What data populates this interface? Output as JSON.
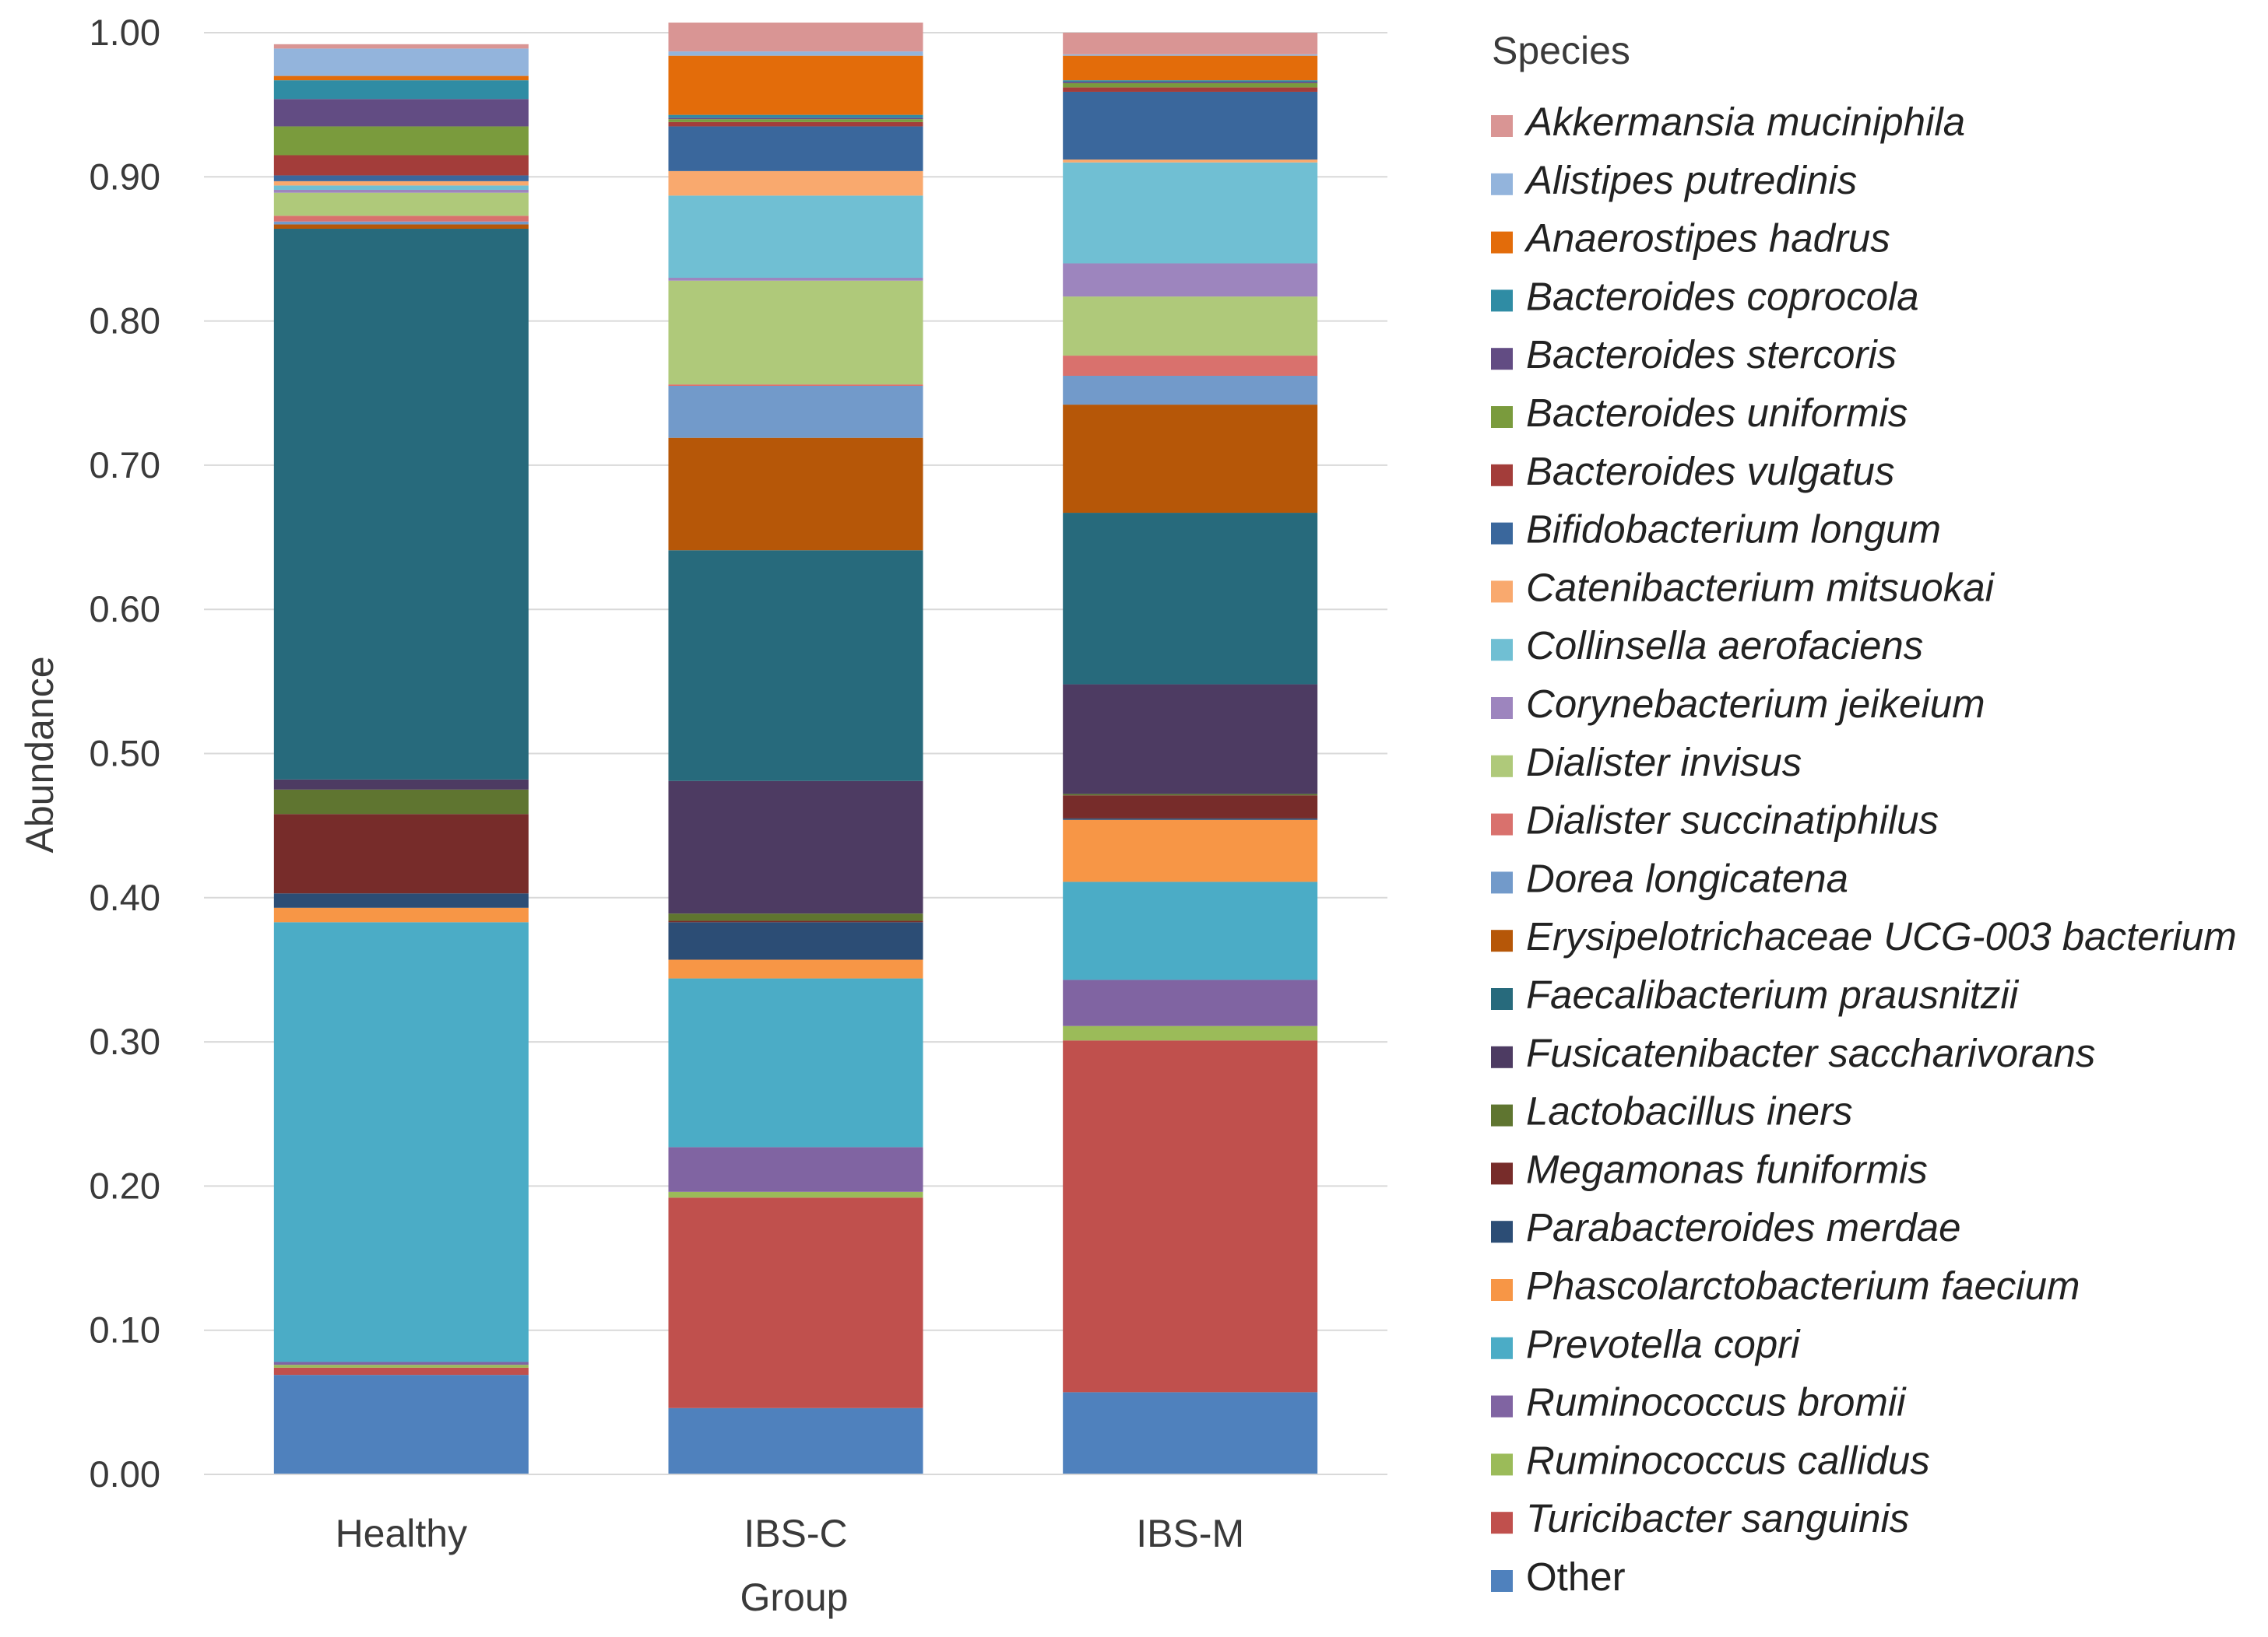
{
  "chart_data": {
    "type": "bar",
    "stacked": true,
    "xlabel": "Group",
    "ylabel": "Abundance",
    "ylim": [
      0,
      1
    ],
    "yticks": [
      "0.00",
      "0.10",
      "0.20",
      "0.30",
      "0.40",
      "0.50",
      "0.60",
      "0.70",
      "0.80",
      "0.90",
      "1.00"
    ],
    "grid": true,
    "legend_title": "Species",
    "legend_position": "right",
    "categories": [
      "Healthy",
      "IBS-C",
      "IBS-M"
    ],
    "series": [
      {
        "name": "Other",
        "color": "#4f81bd",
        "italic": false,
        "values": [
          0.069,
          0.046,
          0.057
        ]
      },
      {
        "name": "Turicibacter sanguinis",
        "color": "#c0504d",
        "italic": true,
        "values": [
          0.005,
          0.146,
          0.244
        ]
      },
      {
        "name": "Ruminococcus callidus",
        "color": "#9bbb59",
        "italic": true,
        "values": [
          0.002,
          0.004,
          0.01
        ]
      },
      {
        "name": "Ruminococcus bromii",
        "color": "#8064a2",
        "italic": true,
        "values": [
          0.002,
          0.031,
          0.032
        ]
      },
      {
        "name": "Prevotella copri",
        "color": "#4bacc6",
        "italic": true,
        "values": [
          0.305,
          0.117,
          0.068
        ]
      },
      {
        "name": "Phascolarctobacterium faecium",
        "color": "#f79646",
        "italic": true,
        "values": [
          0.01,
          0.013,
          0.043
        ]
      },
      {
        "name": "Parabacteroides merdae",
        "color": "#2c4d75",
        "italic": true,
        "values": [
          0.01,
          0.026,
          0.001
        ]
      },
      {
        "name": "Megamonas funiformis",
        "color": "#772c2a",
        "italic": true,
        "values": [
          0.055,
          0.001,
          0.016
        ]
      },
      {
        "name": "Lactobacillus iners",
        "color": "#5f7530",
        "italic": true,
        "values": [
          0.017,
          0.005,
          0.001
        ]
      },
      {
        "name": "Fusicatenibacter saccharivorans",
        "color": "#4d3b62",
        "italic": true,
        "values": [
          0.007,
          0.092,
          0.076
        ]
      },
      {
        "name": "Faecalibacterium prausnitzii",
        "color": "#276a7c",
        "italic": true,
        "values": [
          0.382,
          0.16,
          0.119
        ]
      },
      {
        "name": "Erysipelotrichaceae UCG-003 bacterium",
        "color": "#b65708",
        "italic": true,
        "values": [
          0.003,
          0.078,
          0.075
        ]
      },
      {
        "name": "Dorea longicatena",
        "color": "#729aca",
        "italic": true,
        "values": [
          0.002,
          0.036,
          0.02
        ]
      },
      {
        "name": "Dialister succinatiphilus",
        "color": "#d9716d",
        "italic": true,
        "values": [
          0.004,
          0.001,
          0.014
        ]
      },
      {
        "name": "Dialister invisus",
        "color": "#afc97a",
        "italic": true,
        "values": [
          0.016,
          0.072,
          0.041
        ]
      },
      {
        "name": "Corynebacterium jeikeium",
        "color": "#9d85be",
        "italic": true,
        "values": [
          0.002,
          0.002,
          0.023
        ]
      },
      {
        "name": "Collinsella aerofaciens",
        "color": "#70bfd3",
        "italic": true,
        "values": [
          0.003,
          0.057,
          0.07
        ]
      },
      {
        "name": "Catenibacterium mitsuokai",
        "color": "#f9a96e",
        "italic": true,
        "values": [
          0.003,
          0.017,
          0.002
        ]
      },
      {
        "name": "Bifidobacterium longum",
        "color": "#3a679c",
        "italic": true,
        "values": [
          0.004,
          0.031,
          0.047
        ]
      },
      {
        "name": "Bacteroides vulgatus",
        "color": "#a33d3a",
        "italic": true,
        "values": [
          0.014,
          0.003,
          0.003
        ]
      },
      {
        "name": "Bacteroides uniformis",
        "color": "#7a9b3d",
        "italic": true,
        "values": [
          0.02,
          0.002,
          0.003
        ]
      },
      {
        "name": "Bacteroides stercoris",
        "color": "#624c83",
        "italic": true,
        "values": [
          0.019,
          0.001,
          0.001
        ]
      },
      {
        "name": "Bacteroides coprocola",
        "color": "#2f8ca4",
        "italic": true,
        "values": [
          0.013,
          0.002,
          0.001
        ]
      },
      {
        "name": "Anaerostipes hadrus",
        "color": "#e36c0a",
        "italic": true,
        "values": [
          0.003,
          0.041,
          0.017
        ]
      },
      {
        "name": "Alistipes putredinis",
        "color": "#93b4dc",
        "italic": true,
        "values": [
          0.019,
          0.003,
          0.001
        ]
      },
      {
        "name": "Akkermansia muciniphila",
        "color": "#d99594",
        "italic": true,
        "values": [
          0.003,
          0.02,
          0.015
        ]
      }
    ]
  }
}
